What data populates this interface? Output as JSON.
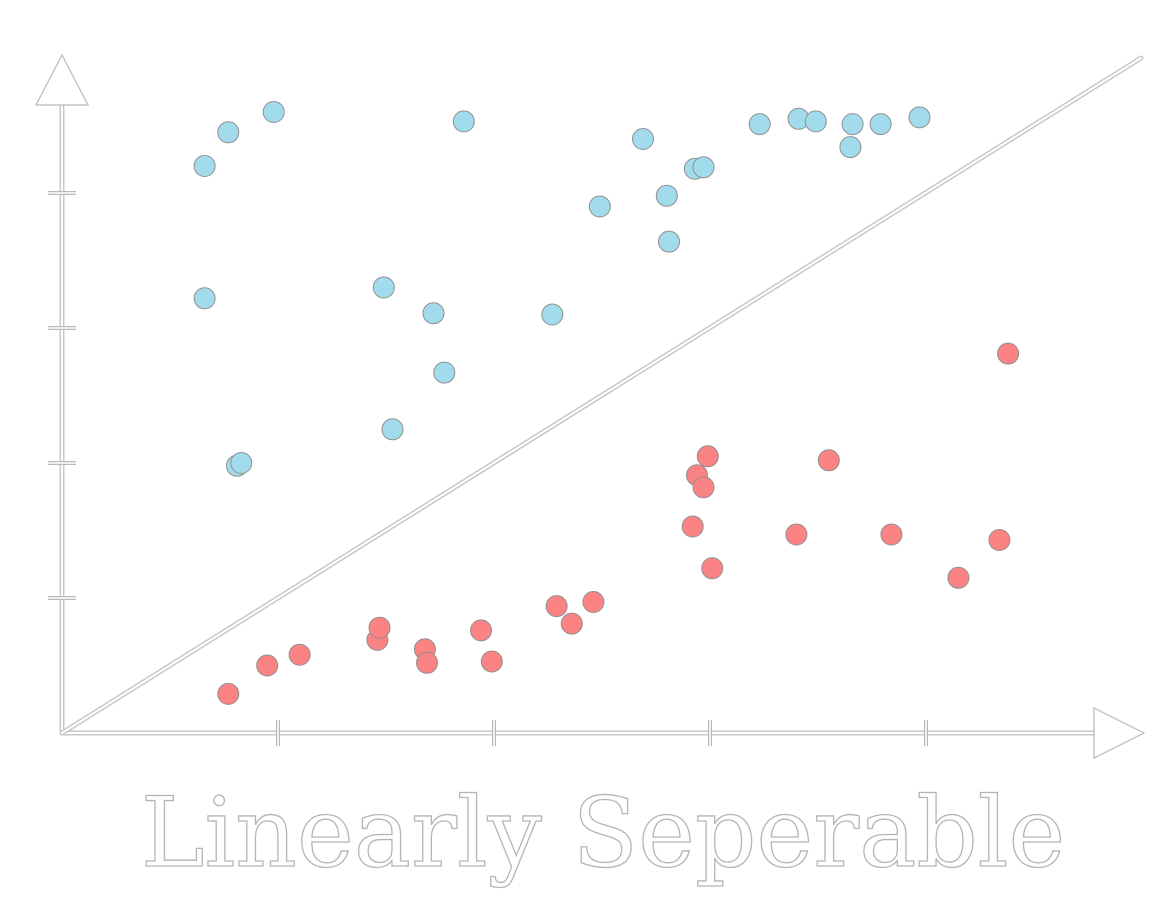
{
  "chart_data": {
    "type": "scatter",
    "title": "Linearly Seperable",
    "xlabel": "",
    "ylabel": "",
    "xlim": [
      0,
      5
    ],
    "ylim": [
      0,
      5
    ],
    "x_ticks": [
      1,
      2,
      3,
      4
    ],
    "y_ticks": [
      1,
      2,
      3,
      4
    ],
    "show_tick_labels": false,
    "grid": false,
    "legend": "none",
    "separator_line": {
      "from": [
        0,
        0
      ],
      "to": [
        5,
        5
      ]
    },
    "series": [
      {
        "color": "#a2dcec",
        "points": [
          [
            0.66,
            4.2
          ],
          [
            0.77,
            4.45
          ],
          [
            0.98,
            4.6
          ],
          [
            1.86,
            4.53
          ],
          [
            0.66,
            3.22
          ],
          [
            1.49,
            3.3
          ],
          [
            1.72,
            3.11
          ],
          [
            1.77,
            2.67
          ],
          [
            1.53,
            2.25
          ],
          [
            0.81,
            1.98
          ],
          [
            0.83,
            2.0
          ],
          [
            2.27,
            3.1
          ],
          [
            2.49,
            3.9
          ],
          [
            2.69,
            4.4
          ],
          [
            2.8,
            3.98
          ],
          [
            2.81,
            3.64
          ],
          [
            2.93,
            4.18
          ],
          [
            2.97,
            4.19
          ],
          [
            3.23,
            4.51
          ],
          [
            3.41,
            4.55
          ],
          [
            3.49,
            4.53
          ],
          [
            3.66,
            4.51
          ],
          [
            3.65,
            4.34
          ],
          [
            3.79,
            4.51
          ],
          [
            3.97,
            4.56
          ]
        ]
      },
      {
        "color": "#fb8383",
        "points": [
          [
            0.77,
            0.29
          ],
          [
            0.95,
            0.5
          ],
          [
            1.1,
            0.58
          ],
          [
            1.46,
            0.69
          ],
          [
            1.47,
            0.78
          ],
          [
            1.68,
            0.62
          ],
          [
            1.69,
            0.52
          ],
          [
            1.94,
            0.76
          ],
          [
            1.99,
            0.53
          ],
          [
            2.29,
            0.94
          ],
          [
            2.36,
            0.81
          ],
          [
            2.46,
            0.97
          ],
          [
            2.92,
            1.53
          ],
          [
            2.94,
            1.91
          ],
          [
            2.97,
            1.82
          ],
          [
            2.99,
            2.05
          ],
          [
            3.01,
            1.22
          ],
          [
            3.4,
            1.47
          ],
          [
            3.55,
            2.02
          ],
          [
            3.84,
            1.47
          ],
          [
            4.15,
            1.15
          ],
          [
            4.34,
            1.43
          ],
          [
            4.38,
            2.81
          ]
        ]
      }
    ]
  }
}
